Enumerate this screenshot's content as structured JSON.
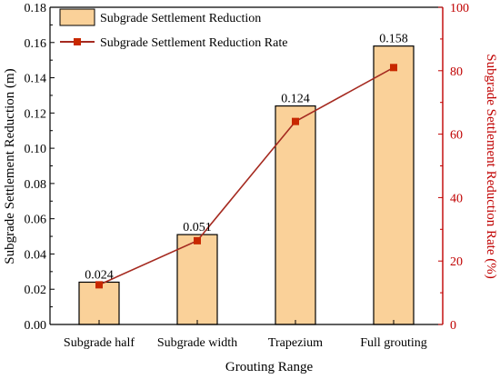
{
  "chart_data": {
    "type": "bar",
    "categories": [
      "Subgrade half",
      "Subgrade width",
      "Trapezium",
      "Full grouting"
    ],
    "series": [
      {
        "name": "Subgrade Settlement Reduction",
        "type": "bar",
        "axis": "left",
        "values": [
          0.024,
          0.051,
          0.124,
          0.158
        ],
        "data_labels": [
          "0.024",
          "0.051",
          "0.124",
          "0.158"
        ],
        "color": "#FAD199",
        "edge_color": "#000000"
      },
      {
        "name": "Subgrade Settlement Reduction Rate",
        "type": "line",
        "axis": "right",
        "values": [
          12.5,
          26.4,
          64,
          81
        ],
        "color": "#A52A20",
        "marker_color": "#C82800"
      }
    ],
    "xlabel": "Grouting Range",
    "ylabel": "Subgrade Settlement Reduction (m)",
    "y2label": "Subgrade Settlement Reduction Rate (%)",
    "ylim": [
      0,
      0.18
    ],
    "y2lim": [
      0,
      100
    ],
    "yticks": [
      "0.00",
      "0.02",
      "0.04",
      "0.06",
      "0.08",
      "0.10",
      "0.12",
      "0.14",
      "0.16",
      "0.18"
    ],
    "y2ticks": [
      "0",
      "20",
      "40",
      "60",
      "80",
      "100"
    ],
    "legend_position": "top-left",
    "grid": false,
    "right_axis_color": "#C00000"
  }
}
